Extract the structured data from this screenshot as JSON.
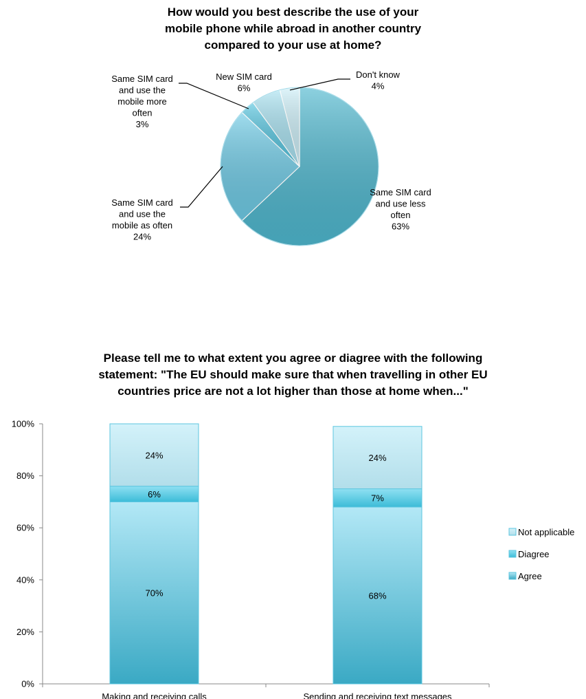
{
  "chart_data": [
    {
      "type": "pie",
      "title": "How would you best describe the use of your\nmobile phone while abroad in another country\ncompared to your use at home?",
      "slices": [
        {
          "label": "Same SIM card\nand use less\noften",
          "value": 63,
          "value_label": "63%",
          "color": "#4fb8cf"
        },
        {
          "label": "Same SIM card\nand use the\nmobile as often",
          "value": 24,
          "value_label": "24%",
          "color": "#6fcbe6"
        },
        {
          "label": "Same SIM card\nand use the\nmobile more\noften",
          "value": 3,
          "value_label": "3%",
          "color": "#58c6e0"
        },
        {
          "label": "New SIM card",
          "value": 6,
          "value_label": "6%",
          "color": "#a9e2f1"
        },
        {
          "label": "Don't know",
          "value": 4,
          "value_label": "4%",
          "color": "#cdeff8"
        }
      ]
    },
    {
      "type": "bar",
      "stacked": true,
      "title": "Please tell me to what extent you agree or diagree with the following\nstatement: \"The EU should make sure that when travelling in other EU\ncountries price are not a lot higher than those at home when...\"",
      "categories": [
        "Making and receiving calls",
        "Sending and receiving text messages"
      ],
      "series": [
        {
          "name": "Agree",
          "values": [
            70,
            68
          ],
          "value_labels": [
            "70%",
            "68%"
          ],
          "color": "#7fd1e8"
        },
        {
          "name": "Diagree",
          "values": [
            6,
            7
          ],
          "value_labels": [
            "6%",
            "7%"
          ],
          "color": "#5ec9e3"
        },
        {
          "name": "Not applicable",
          "values": [
            24,
            24
          ],
          "value_labels": [
            "24%",
            "24%"
          ],
          "color": "#bde9f5"
        }
      ],
      "ylim": [
        0,
        100
      ],
      "yticks": [
        0,
        20,
        40,
        60,
        80,
        100
      ],
      "ytick_labels": [
        "0%",
        "20%",
        "40%",
        "60%",
        "80%",
        "100%"
      ],
      "legend": {
        "placement": "right",
        "order": [
          "Not applicable",
          "Diagree",
          "Agree"
        ]
      }
    }
  ]
}
